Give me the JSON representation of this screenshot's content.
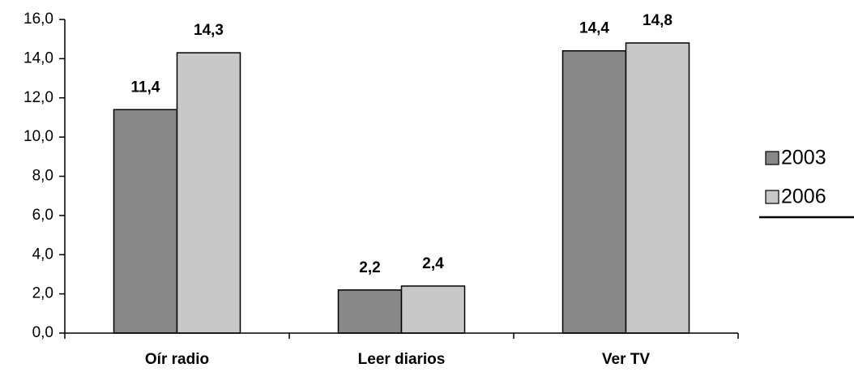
{
  "chart_data": {
    "type": "bar",
    "categories": [
      "Oír radio",
      "Leer diarios",
      "Ver TV"
    ],
    "series": [
      {
        "name": "2003",
        "color": "#888888",
        "values": [
          11.4,
          2.2,
          14.4
        ],
        "value_labels": [
          "11,4",
          "2,2",
          "14,4"
        ]
      },
      {
        "name": "2006",
        "color": "#c8c8c8",
        "values": [
          14.3,
          2.4,
          14.8
        ],
        "value_labels": [
          "14,3",
          "2,4",
          "14,8"
        ]
      }
    ],
    "ylim": [
      0,
      16
    ],
    "yticks": [
      {
        "value": 0,
        "label": "0,0"
      },
      {
        "value": 2,
        "label": "2,0"
      },
      {
        "value": 4,
        "label": "4,0"
      },
      {
        "value": 6,
        "label": "6,0"
      },
      {
        "value": 8,
        "label": "8,0"
      },
      {
        "value": 10,
        "label": "10,0"
      },
      {
        "value": 12,
        "label": "12,0"
      },
      {
        "value": 14,
        "label": "14,0"
      },
      {
        "value": 16,
        "label": "16,0"
      }
    ],
    "legend": "right"
  }
}
